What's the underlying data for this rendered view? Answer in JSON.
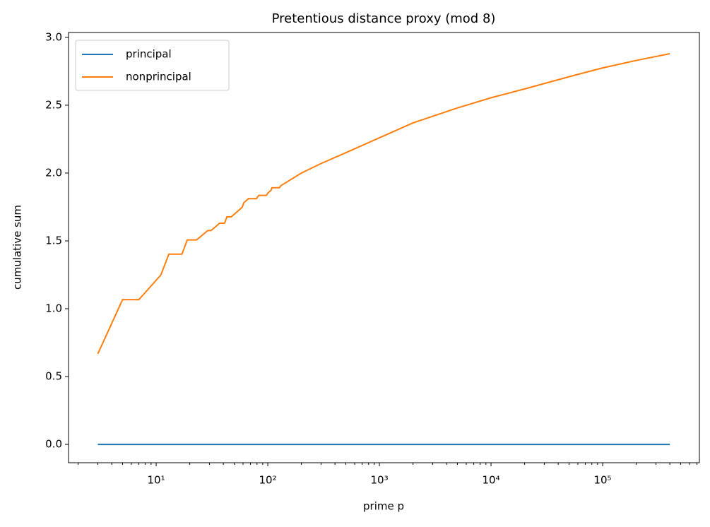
{
  "chart_data": {
    "type": "line",
    "title": "Pretentious distance proxy (mod 8)",
    "xlabel": "prime p",
    "ylabel": "cumulative sum",
    "xscale": "log",
    "legend": "upper left",
    "x": [
      3,
      5,
      7,
      11,
      13,
      17,
      19,
      23,
      29,
      31,
      37,
      41,
      43,
      47,
      53,
      59,
      61,
      67,
      71,
      73,
      79,
      83,
      89,
      97,
      101,
      107,
      109,
      113,
      127,
      131,
      200,
      300,
      500,
      1000,
      2000,
      5000,
      10000,
      20000,
      50000,
      100000,
      200000,
      400000
    ],
    "series": [
      {
        "name": "principal",
        "color": "#1f77b4",
        "values": [
          0,
          0,
          0,
          0,
          0,
          0,
          0,
          0,
          0,
          0,
          0,
          0,
          0,
          0,
          0,
          0,
          0,
          0,
          0,
          0,
          0,
          0,
          0,
          0,
          0,
          0,
          0,
          0,
          0,
          0,
          0,
          0,
          0,
          0,
          0,
          0,
          0,
          0,
          0,
          0,
          0,
          0
        ]
      },
      {
        "name": "nonprincipal",
        "color": "#ff7f0e",
        "values": [
          0.667,
          1.067,
          1.067,
          1.248,
          1.402,
          1.402,
          1.507,
          1.507,
          1.576,
          1.576,
          1.63,
          1.63,
          1.677,
          1.677,
          1.714,
          1.748,
          1.781,
          1.811,
          1.811,
          1.811,
          1.811,
          1.835,
          1.835,
          1.835,
          1.855,
          1.873,
          1.892,
          1.892,
          1.892,
          1.907,
          2.0,
          2.07,
          2.15,
          2.26,
          2.37,
          2.48,
          2.555,
          2.62,
          2.71,
          2.775,
          2.83,
          2.88
        ]
      }
    ],
    "xlim": [
      1.64,
      736000
    ],
    "ylim": [
      -0.135,
      3.036
    ],
    "xticks": [
      {
        "value": 10,
        "label": "10¹"
      },
      {
        "value": 100,
        "label": "10²"
      },
      {
        "value": 1000,
        "label": "10³"
      },
      {
        "value": 10000,
        "label": "10⁴"
      },
      {
        "value": 100000,
        "label": "10⁵"
      }
    ],
    "xminorticks": [
      2,
      3,
      4,
      5,
      6,
      7,
      8,
      9,
      20,
      30,
      40,
      50,
      60,
      70,
      80,
      90,
      200,
      300,
      400,
      500,
      600,
      700,
      800,
      900,
      2000,
      3000,
      4000,
      5000,
      6000,
      7000,
      8000,
      9000,
      20000,
      30000,
      40000,
      50000,
      60000,
      70000,
      80000,
      90000,
      200000,
      300000,
      400000,
      500000,
      600000,
      700000
    ],
    "yticks": [
      {
        "value": 0,
        "label": "0.0"
      },
      {
        "value": 0.5,
        "label": "0.5"
      },
      {
        "value": 1,
        "label": "1.0"
      },
      {
        "value": 1.5,
        "label": "1.5"
      },
      {
        "value": 2,
        "label": "2.0"
      },
      {
        "value": 2.5,
        "label": "2.5"
      },
      {
        "value": 3,
        "label": "3.0"
      }
    ]
  }
}
